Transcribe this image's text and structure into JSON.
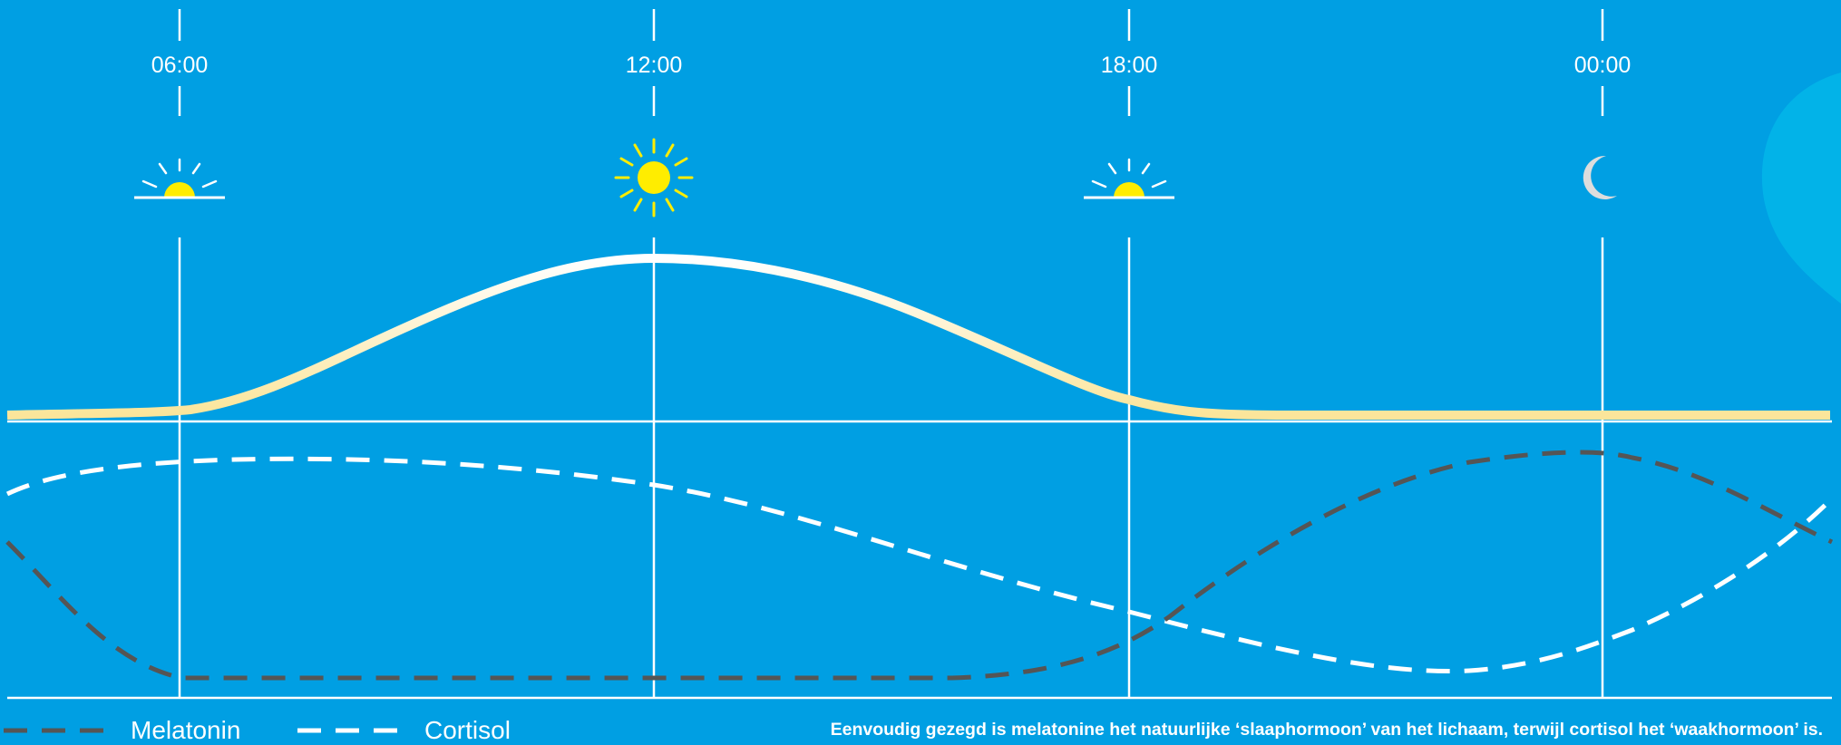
{
  "time_axis": {
    "ticks": [
      "06:00",
      "12:00",
      "18:00",
      "00:00"
    ],
    "icons": [
      "sunrise-icon",
      "sun-icon",
      "sunset-icon",
      "moon-icon"
    ]
  },
  "legend": {
    "melatonin": "Melatonin",
    "cortisol": "Cortisol"
  },
  "caption": "Eenvoudig gezegd is melatonine het natuurlijke ‘slaaphormoon’ van het lichaam, terwijl cortisol het ‘waakhormoon’ is.",
  "colors": {
    "background": "#009fe3",
    "light_curve": "#fbe59a",
    "melatonin": "#555555",
    "cortisol": "#ffffff",
    "sun": "#ffed00",
    "moon": "#dddddd",
    "decoration": "#02b3e8"
  }
}
